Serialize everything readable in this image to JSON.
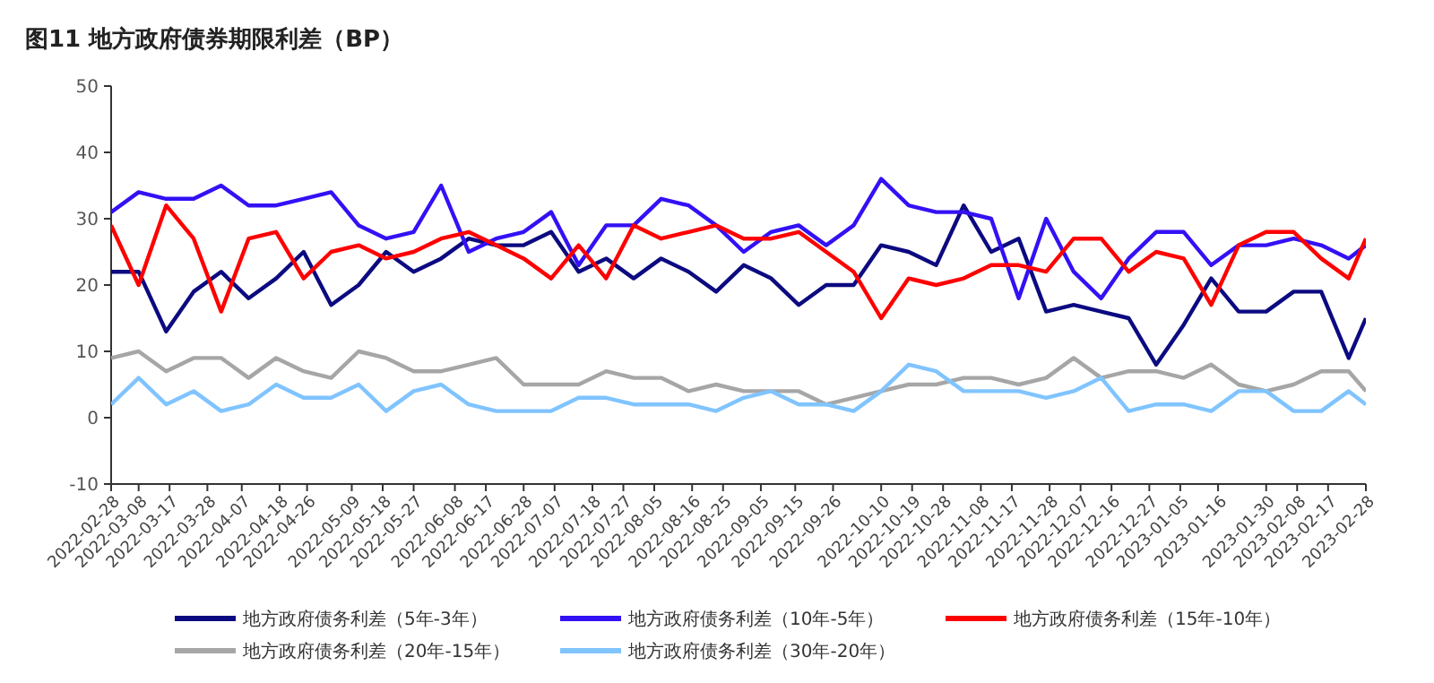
{
  "chart_data": {
    "type": "line",
    "title": "图11 地方政府债券期限利差（BP）",
    "x": [
      "2022-02-28",
      "2022-03-08",
      "2022-03-16",
      "2022-03-24",
      "2022-04-01",
      "2022-04-09",
      "2022-04-17",
      "2022-04-25",
      "2022-05-03",
      "2022-05-11",
      "2022-05-19",
      "2022-05-27",
      "2022-06-04",
      "2022-06-12",
      "2022-06-20",
      "2022-06-28",
      "2022-07-06",
      "2022-07-14",
      "2022-07-22",
      "2022-07-30",
      "2022-08-07",
      "2022-08-15",
      "2022-08-23",
      "2022-08-31",
      "2022-09-08",
      "2022-09-16",
      "2022-09-24",
      "2022-10-02",
      "2022-10-10",
      "2022-10-18",
      "2022-10-26",
      "2022-11-03",
      "2022-11-11",
      "2022-11-19",
      "2022-11-27",
      "2022-12-05",
      "2022-12-13",
      "2022-12-21",
      "2022-12-29",
      "2023-01-06",
      "2023-01-14",
      "2023-01-22",
      "2023-01-30",
      "2023-02-07",
      "2023-02-15",
      "2023-02-23",
      "2023-02-28"
    ],
    "series": [
      {
        "name": "地方政府债务利差（5年-3年）",
        "color": "#0c0a80",
        "values": [
          22,
          22,
          13,
          19,
          22,
          18,
          21,
          25,
          17,
          20,
          25,
          22,
          24,
          27,
          26,
          26,
          28,
          22,
          24,
          21,
          24,
          22,
          19,
          23,
          21,
          17,
          20,
          20,
          26,
          25,
          23,
          32,
          25,
          27,
          16,
          17,
          16,
          15,
          8,
          14,
          21,
          16,
          16,
          19,
          19,
          9,
          15
        ]
      },
      {
        "name": "地方政府债务利差（10年-5年）",
        "color": "#3311f5",
        "values": [
          31,
          34,
          33,
          33,
          35,
          32,
          32,
          33,
          34,
          29,
          27,
          28,
          35,
          25,
          27,
          28,
          31,
          23,
          29,
          29,
          33,
          32,
          29,
          25,
          28,
          29,
          26,
          29,
          36,
          32,
          31,
          31,
          30,
          18,
          30,
          22,
          18,
          24,
          28,
          28,
          23,
          26,
          26,
          27,
          26,
          24,
          26
        ]
      },
      {
        "name": "地方政府债务利差（15年-10年）",
        "color": "#ff0000",
        "values": [
          29,
          20,
          32,
          27,
          16,
          27,
          28,
          21,
          25,
          26,
          24,
          25,
          27,
          28,
          26,
          24,
          21,
          26,
          21,
          29,
          27,
          28,
          29,
          27,
          27,
          28,
          25,
          22,
          15,
          21,
          20,
          21,
          23,
          23,
          22,
          27,
          27,
          22,
          25,
          24,
          17,
          26,
          28,
          28,
          24,
          21,
          27
        ]
      },
      {
        "name": "地方政府债务利差（20年-15年）",
        "color": "#a6a6a6",
        "values": [
          9,
          10,
          7,
          9,
          9,
          6,
          9,
          7,
          6,
          10,
          9,
          7,
          7,
          8,
          9,
          5,
          5,
          5,
          7,
          6,
          6,
          4,
          5,
          4,
          4,
          4,
          2,
          3,
          4,
          5,
          5,
          6,
          6,
          5,
          6,
          9,
          6,
          7,
          7,
          6,
          8,
          5,
          4,
          5,
          7,
          7,
          4
        ]
      },
      {
        "name": "地方政府债务利差（30年-20年）",
        "color": "#80c4ff",
        "values": [
          2,
          6,
          2,
          4,
          1,
          2,
          5,
          3,
          3,
          5,
          1,
          4,
          5,
          2,
          1,
          1,
          1,
          3,
          3,
          2,
          2,
          2,
          1,
          3,
          4,
          2,
          2,
          1,
          4,
          8,
          7,
          4,
          4,
          4,
          3,
          4,
          6,
          1,
          2,
          2,
          1,
          4,
          4,
          1,
          1,
          4,
          2
        ]
      }
    ],
    "xlim": [
      "2022-02-28",
      "2023-02-28"
    ],
    "xticks": [
      "2022-02-28",
      "2022-03-08",
      "2022-03-17",
      "2022-03-28",
      "2022-04-07",
      "2022-04-18",
      "2022-04-26",
      "2022-05-09",
      "2022-05-18",
      "2022-05-27",
      "2022-06-08",
      "2022-06-17",
      "2022-06-28",
      "2022-07-07",
      "2022-07-18",
      "2022-07-27",
      "2022-08-05",
      "2022-08-16",
      "2022-08-25",
      "2022-09-05",
      "2022-09-15",
      "2022-09-26",
      "2022-10-10",
      "2022-10-19",
      "2022-10-28",
      "2022-11-08",
      "2022-11-17",
      "2022-11-28",
      "2022-12-07",
      "2022-12-16",
      "2022-12-27",
      "2023-01-05",
      "2023-01-16",
      "2023-01-30",
      "2023-02-08",
      "2023-02-17",
      "2023-02-28"
    ],
    "ylim": [
      -10,
      50
    ],
    "yticks": [
      -10,
      0,
      10,
      20,
      30,
      40,
      50
    ],
    "grid": false,
    "legend": "bottom",
    "marker": "none",
    "line_style": "solid"
  }
}
